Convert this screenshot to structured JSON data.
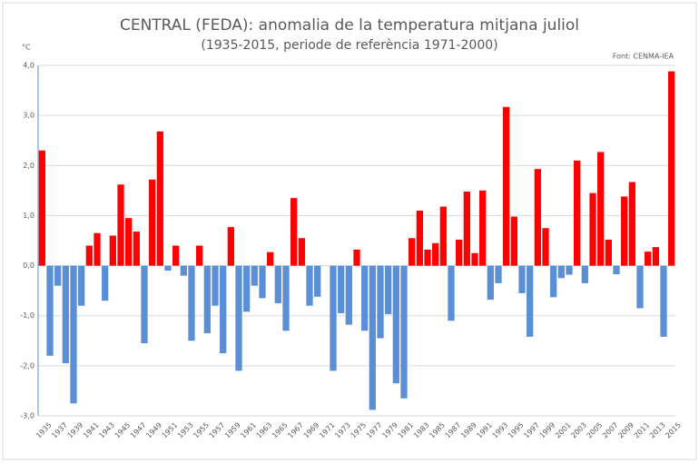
{
  "chart_data": {
    "type": "bar",
    "title": "CENTRAL (FEDA): anomalia de la temperatura mitjana juliol",
    "subtitle": "(1935-2015, periode de referència 1971-2000)",
    "y_unit": "°C",
    "source": "Font: CENMA-IEA",
    "categories": [
      "1935",
      null,
      "1937",
      null,
      "1939",
      null,
      "1941",
      null,
      "1943",
      null,
      "1945",
      null,
      "1947",
      null,
      "1949",
      null,
      "1951",
      null,
      "1953",
      null,
      "1955",
      null,
      "1957",
      null,
      "1959",
      null,
      "1961",
      null,
      "1963",
      null,
      "1965",
      null,
      "1967",
      null,
      "1969",
      null,
      "1971",
      null,
      "1973",
      null,
      "1975",
      null,
      "1977",
      null,
      "1979",
      null,
      "1981",
      null,
      "1983",
      null,
      "1985",
      null,
      "1987",
      null,
      "1989",
      null,
      "1991",
      null,
      "1993",
      null,
      "1995",
      null,
      "1997",
      null,
      "1999",
      null,
      "2001",
      null,
      "2003",
      null,
      "2005",
      null,
      "2007",
      null,
      "2009",
      null,
      "2011",
      null,
      "2013",
      null,
      "2015"
    ],
    "values": [
      2.3,
      -1.8,
      -0.4,
      -1.95,
      -2.75,
      -0.8,
      0.4,
      0.65,
      -0.7,
      0.6,
      1.62,
      0.95,
      0.68,
      -1.55,
      1.72,
      2.68,
      -0.1,
      0.4,
      -0.2,
      -1.5,
      0.4,
      -1.35,
      -0.8,
      -1.75,
      0.77,
      -2.1,
      -0.92,
      -0.4,
      -0.65,
      0.27,
      -0.75,
      -1.3,
      1.35,
      0.55,
      -0.8,
      -0.62,
      0,
      -2.1,
      -0.95,
      -1.18,
      0.32,
      -1.3,
      -2.88,
      -1.45,
      -0.97,
      -2.35,
      -2.65,
      0.55,
      1.1,
      0.32,
      0.45,
      1.18,
      -1.1,
      0.52,
      1.48,
      0.25,
      1.5,
      -0.68,
      -0.35,
      3.17,
      0.98,
      -0.55,
      -1.42,
      1.93,
      0.75,
      -0.63,
      -0.25,
      -0.18,
      2.1,
      -0.35,
      1.45,
      2.27,
      0.52,
      -0.17,
      1.38,
      1.67,
      -0.85,
      0.28,
      0.37,
      -1.42,
      3.88
    ],
    "positive_color": "#ff0000",
    "negative_color": "#5b8fd5",
    "ylim": [
      -3,
      4
    ],
    "yticks": [
      {
        "value": -3,
        "label": "-3,0"
      },
      {
        "value": -2,
        "label": "-2,0"
      },
      {
        "value": -1,
        "label": "-1,0"
      },
      {
        "value": 0,
        "label": "0,0"
      },
      {
        "value": 1,
        "label": "1,0"
      },
      {
        "value": 2,
        "label": "2,0"
      },
      {
        "value": 3,
        "label": "3,0"
      },
      {
        "value": 4,
        "label": "4,0"
      }
    ],
    "grid": true
  }
}
